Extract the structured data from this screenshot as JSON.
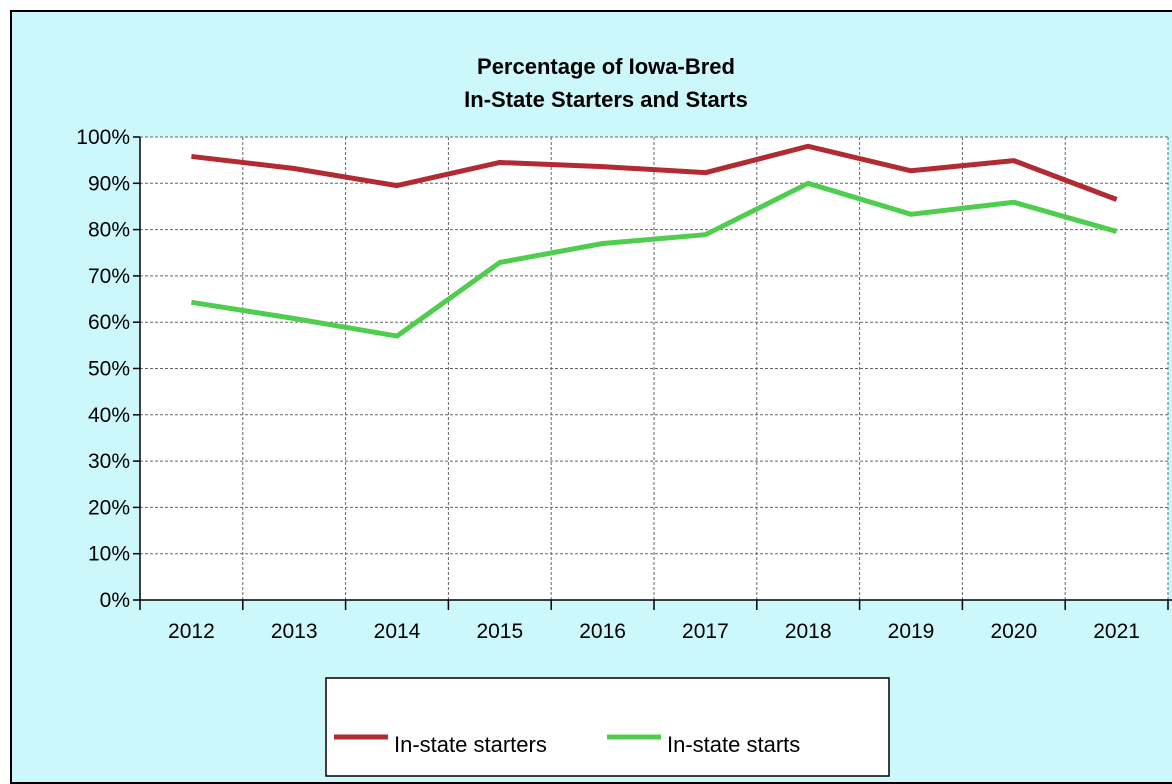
{
  "chart_data": {
    "type": "line",
    "title": [
      "Percentage of Iowa-Bred",
      "In-State Starters and Starts"
    ],
    "categories": [
      "2012",
      "2013",
      "2014",
      "2015",
      "2016",
      "2017",
      "2018",
      "2019",
      "2020",
      "2021"
    ],
    "series": [
      {
        "name": "In-state starters",
        "color": "#b22a33",
        "values": [
          95.8,
          93.2,
          89.5,
          94.5,
          93.6,
          92.3,
          98.0,
          92.7,
          94.9,
          86.5
        ]
      },
      {
        "name": "In-state starts",
        "color": "#4fcd4f",
        "values": [
          64.3,
          60.8,
          57.0,
          72.9,
          77.0,
          78.9,
          90.0,
          83.3,
          85.9,
          79.6
        ]
      }
    ],
    "ylim": [
      0,
      100
    ],
    "yticks": [
      "0%",
      "10%",
      "20%",
      "30%",
      "40%",
      "50%",
      "60%",
      "70%",
      "80%",
      "90%",
      "100%"
    ],
    "grid": true,
    "legend_position": "bottom",
    "background_color": "#ccf7fb",
    "plot_background_color": "#ffffff"
  }
}
